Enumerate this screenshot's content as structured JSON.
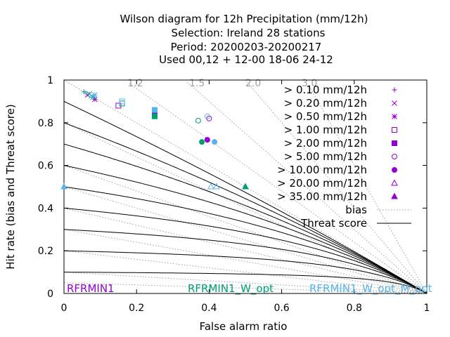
{
  "chart_data": {
    "type": "scatter",
    "title_lines": [
      "Wilson diagram  for 12h Precipitation (mm/12h)",
      "Selection: Ireland      28 stations",
      "Period: 20200203-20200217",
      "Used  00,12  + 12-00 18-06 24-12"
    ],
    "xlabel": "False alarm ratio",
    "ylabel": "Hit rate (bias and Threat score)",
    "xlim": [
      0,
      1
    ],
    "ylim": [
      0,
      1
    ],
    "xticks": [
      "0",
      "0.2",
      "0.4",
      "0.6",
      "0.8",
      "1"
    ],
    "yticks": [
      "0",
      "0.2",
      "0.4",
      "0.6",
      "0.8",
      "1"
    ],
    "bias_curves": [
      1.2,
      1.5,
      2.0,
      3.0
    ],
    "bias_labels": [
      "1.2",
      "1.5",
      "2.0",
      "3.0"
    ],
    "threat_scores": [
      0.1,
      0.2,
      0.3,
      0.4,
      0.5,
      0.6,
      0.7,
      0.8,
      0.9
    ],
    "legend": [
      "> 0.10 mm/12h",
      "> 0.20 mm/12h",
      "> 0.50 mm/12h",
      "> 1.00 mm/12h",
      "> 2.00 mm/12h",
      "> 5.00 mm/12h",
      "> 10.00 mm/12h",
      "> 20.00 mm/12h",
      "> 35.00 mm/12h",
      "bias",
      "Threat score"
    ],
    "legend_placement": "right",
    "experiments": [
      {
        "label": "RFRMIN1",
        "color": "#9400d3"
      },
      {
        "label": "RFRMIN1_W_opt",
        "color": "#009e73"
      },
      {
        "label": "RFRMIN1_W_opt_M_opt",
        "color": "#56b4e9"
      }
    ],
    "series": [
      {
        "experiment": "RFRMIN1",
        "color": "#9400d3",
        "points": [
          {
            "threshold": 0,
            "x": 0.06,
            "y": 0.94
          },
          {
            "threshold": 1,
            "x": 0.065,
            "y": 0.93
          },
          {
            "threshold": 2,
            "x": 0.085,
            "y": 0.91
          },
          {
            "threshold": 3,
            "x": 0.15,
            "y": 0.88
          },
          {
            "threshold": 4,
            "x": 0.25,
            "y": 0.85
          },
          {
            "threshold": 5,
            "x": 0.4,
            "y": 0.82
          },
          {
            "threshold": 6,
            "x": 0.395,
            "y": 0.72
          }
        ]
      },
      {
        "experiment": "RFRMIN1_W_opt",
        "color": "#009e73",
        "points": [
          {
            "threshold": 0,
            "x": 0.055,
            "y": 0.945
          },
          {
            "threshold": 1,
            "x": 0.07,
            "y": 0.935
          },
          {
            "threshold": 2,
            "x": 0.08,
            "y": 0.92
          },
          {
            "threshold": 3,
            "x": 0.16,
            "y": 0.89
          },
          {
            "threshold": 4,
            "x": 0.25,
            "y": 0.83
          },
          {
            "threshold": 5,
            "x": 0.37,
            "y": 0.81
          },
          {
            "threshold": 6,
            "x": 0.38,
            "y": 0.71
          },
          {
            "threshold": 8,
            "x": 0.5,
            "y": 0.5
          }
        ]
      },
      {
        "experiment": "RFRMIN1_W_opt_M_opt",
        "color": "#56b4e9",
        "points": [
          {
            "threshold": 0,
            "x": 0.06,
            "y": 0.94
          },
          {
            "threshold": 1,
            "x": 0.075,
            "y": 0.925
          },
          {
            "threshold": 2,
            "x": 0.085,
            "y": 0.93
          },
          {
            "threshold": 3,
            "x": 0.16,
            "y": 0.9
          },
          {
            "threshold": 4,
            "x": 0.25,
            "y": 0.86
          },
          {
            "threshold": 5,
            "x": 0.395,
            "y": 0.83
          },
          {
            "threshold": 6,
            "x": 0.415,
            "y": 0.71
          },
          {
            "threshold": 7,
            "x": 0.42,
            "y": 0.5
          },
          {
            "threshold": 7,
            "x": 0.405,
            "y": 0.5
          },
          {
            "threshold": 8,
            "x": 0.0,
            "y": 0.5
          }
        ]
      }
    ],
    "symbols": [
      "plus",
      "cross",
      "star",
      "square",
      "square-filled",
      "circle",
      "circle-filled",
      "triangle",
      "triangle-filled"
    ],
    "grid": false
  }
}
